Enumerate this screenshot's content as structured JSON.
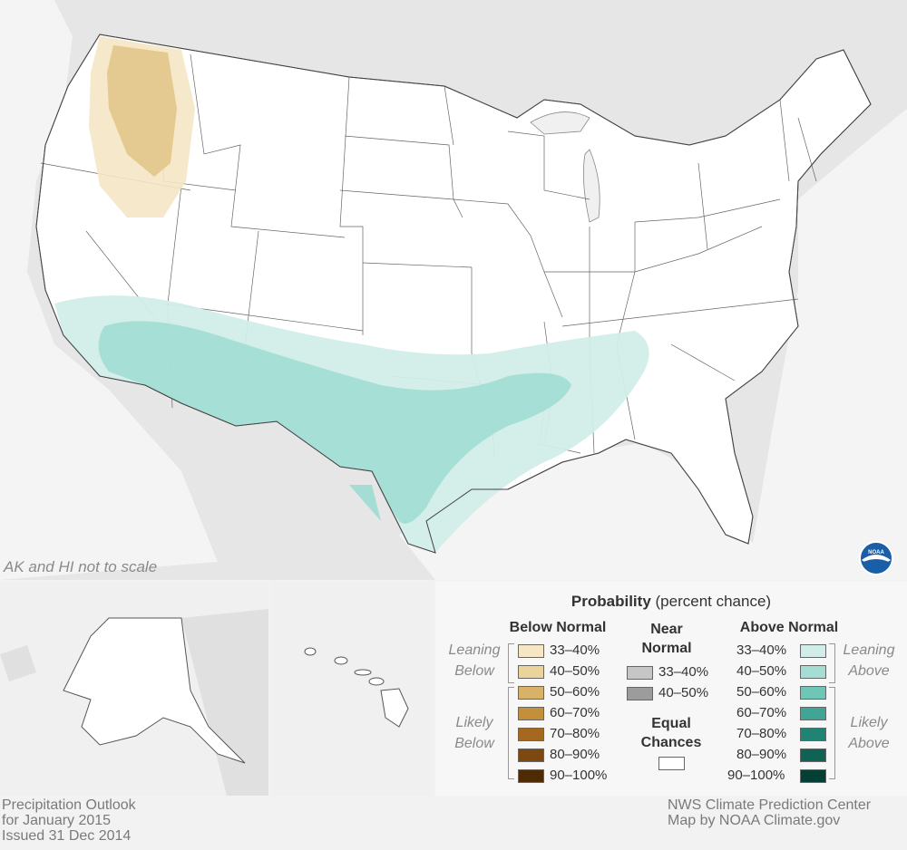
{
  "map_note": "AK and HI not to scale",
  "legend": {
    "title_bold": "Probability",
    "title_rest": " (percent chance)",
    "below": {
      "heading": "Below Normal",
      "leaning_label": [
        "Leaning",
        "Below"
      ],
      "likely_label": [
        "Likely",
        "Below"
      ],
      "items": [
        {
          "label": "33–40%",
          "color": "#f5e6c4"
        },
        {
          "label": "40–50%",
          "color": "#ebd49c"
        },
        {
          "label": "50–60%",
          "color": "#d8b268"
        },
        {
          "label": "60–70%",
          "color": "#c48f3a"
        },
        {
          "label": "70–80%",
          "color": "#a5681f"
        },
        {
          "label": "80–90%",
          "color": "#7d4910"
        },
        {
          "label": "90–100%",
          "color": "#4e2a05"
        }
      ]
    },
    "near": {
      "heading": [
        "Near",
        "Normal"
      ],
      "items": [
        {
          "label": "33–40%",
          "color": "#c6c6c6"
        },
        {
          "label": "40–50%",
          "color": "#9c9c9c"
        }
      ],
      "equal_heading": [
        "Equal",
        "Chances"
      ],
      "equal_color": "#ffffff"
    },
    "above": {
      "heading": "Above Normal",
      "leaning_label": [
        "Leaning",
        "Above"
      ],
      "likely_label": [
        "Likely",
        "Above"
      ],
      "items": [
        {
          "label": "33–40%",
          "color": "#d2ede9"
        },
        {
          "label": "40–50%",
          "color": "#a3ddd4"
        },
        {
          "label": "50–60%",
          "color": "#6fc6b7"
        },
        {
          "label": "60–70%",
          "color": "#3fa595"
        },
        {
          "label": "70–80%",
          "color": "#208374"
        },
        {
          "label": "80–90%",
          "color": "#0e6354"
        },
        {
          "label": "90–100%",
          "color": "#033f34"
        }
      ]
    }
  },
  "footer_left": [
    "Precipitation Outlook",
    "for January 2015",
    "Issued 31 Dec 2014"
  ],
  "footer_right": [
    "NWS Climate Prediction Center",
    "Map by NOAA Climate.gov"
  ],
  "logo_text": "NOAA",
  "colors": {
    "background_land": "#e6e6e6",
    "us_land": "#ffffff",
    "water": "#f0f0f0",
    "below_leaning_33_40": "#f5e6c4",
    "below_leaning_40_50": "#ebd49c",
    "above_leaning_33_40": "#d2ede9",
    "above_leaning_40_50": "#a3ddd4"
  }
}
